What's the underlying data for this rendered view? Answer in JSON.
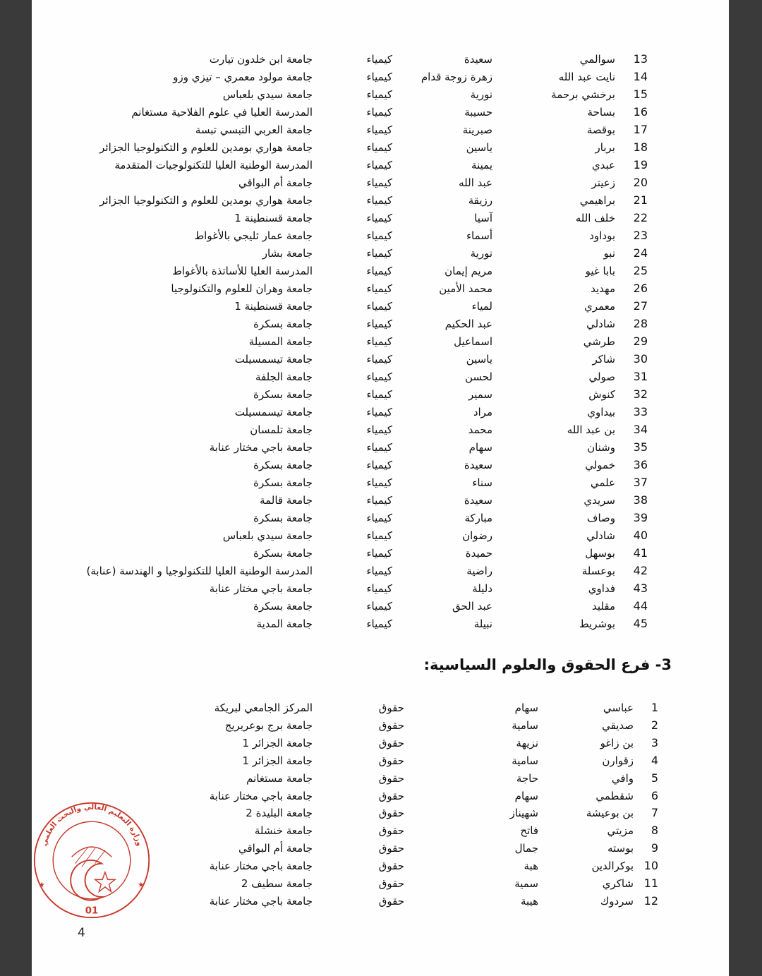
{
  "table1": {
    "rows": [
      {
        "n": "13",
        "surname": "سوالمي",
        "first": "سعيدة",
        "subject": "كيمياء",
        "university": "جامعة ابن خلدون تيارت"
      },
      {
        "n": "14",
        "surname": "نايت عبد الله",
        "first": "زهرة زوجة قدام",
        "subject": "كيمياء",
        "university": "جامعة مولود معمري – تيزي وزو"
      },
      {
        "n": "15",
        "surname": "برخشي برحمة",
        "first": "نورية",
        "subject": "كيمياء",
        "university": "جامعة سيدي بلعباس"
      },
      {
        "n": "16",
        "surname": "بساحة",
        "first": "حسيبة",
        "subject": "كيمياء",
        "university": "المدرسة العليا في علوم الفلاحية مستغانم"
      },
      {
        "n": "17",
        "surname": "بوقصة",
        "first": "صبرينة",
        "subject": "كيمياء",
        "university": "جامعة العربي التبسي  تبسة"
      },
      {
        "n": "18",
        "surname": "بربار",
        "first": "ياسين",
        "subject": "كيمياء",
        "university": "جامعة هواري بومدين للعلوم و التكنولوجيا الجزائر"
      },
      {
        "n": "19",
        "surname": "عبدي",
        "first": "يمينة",
        "subject": "كيمياء",
        "university": "المدرسة الوطنية العليا للتكنولوجيات المتقدمة"
      },
      {
        "n": "20",
        "surname": "زعيتر",
        "first": "عبد الله",
        "subject": "كيمياء",
        "university": "جامعة أم البواقي"
      },
      {
        "n": "21",
        "surname": "براهيمي",
        "first": "رزيقة",
        "subject": "كيمياء",
        "university": "جامعة هواري بومدين للعلوم و التكنولوجيا الجزائر"
      },
      {
        "n": "22",
        "surname": "خلف الله",
        "first": "آسيا",
        "subject": "كيمياء",
        "university": "جامعة قسنطينة 1"
      },
      {
        "n": "23",
        "surname": "بوداود",
        "first": "أسماء",
        "subject": "كيمياء",
        "university": "جامعة عمار ثليجي بالأغواط"
      },
      {
        "n": "24",
        "surname": "نبو",
        "first": "نورية",
        "subject": "كيمياء",
        "university": "جامعة بشار"
      },
      {
        "n": "25",
        "surname": "بابا غيو",
        "first": "مريم إيمان",
        "subject": "كيمياء",
        "university": "المدرسة العليا للأساتذة بالأغواط"
      },
      {
        "n": "26",
        "surname": "مهديد",
        "first": "محمد الأمين",
        "subject": "كيمياء",
        "university": "جامعة وهران  للعلوم والتكنولوجيا"
      },
      {
        "n": "27",
        "surname": "معمري",
        "first": "لمياء",
        "subject": "كيمياء",
        "university": "جامعة قسنطينة 1"
      },
      {
        "n": "28",
        "surname": "شادلي",
        "first": "عبد الحكيم",
        "subject": "كيمياء",
        "university": "جامعة بسكرة"
      },
      {
        "n": "29",
        "surname": "طرشي",
        "first": "اسماعيل",
        "subject": "كيمياء",
        "university": "جامعة المسيلة"
      },
      {
        "n": "30",
        "surname": "شاكر",
        "first": "ياسين",
        "subject": "كيمياء",
        "university": "جامعة تيسمسيلت"
      },
      {
        "n": "31",
        "surname": "صولي",
        "first": "لحسن",
        "subject": "كيمياء",
        "university": "جامعة الجلفة"
      },
      {
        "n": "32",
        "surname": "كنوش",
        "first": "سمير",
        "subject": "كيمياء",
        "university": "جامعة بسكرة"
      },
      {
        "n": "33",
        "surname": "بيداوي",
        "first": "مراد",
        "subject": "كيمياء",
        "university": "جامعة تيسمسيلت"
      },
      {
        "n": "34",
        "surname": "بن عبد الله",
        "first": "محمد",
        "subject": "كيمياء",
        "university": "جامعة  تلمسان"
      },
      {
        "n": "35",
        "surname": "وشنان",
        "first": "سهام",
        "subject": "كيمياء",
        "university": "جامعة باجي مختار  عنابة"
      },
      {
        "n": "36",
        "surname": "خمولي",
        "first": "سعيدة",
        "subject": "كيمياء",
        "university": "جامعة بسكرة"
      },
      {
        "n": "37",
        "surname": "علمي",
        "first": "سناء",
        "subject": "كيمياء",
        "university": "جامعة بسكرة"
      },
      {
        "n": "38",
        "surname": "سريدي",
        "first": "سعيدة",
        "subject": "كيمياء",
        "university": "جامعة قالمة"
      },
      {
        "n": "39",
        "surname": "وصاف",
        "first": "مباركة",
        "subject": "كيمياء",
        "university": "جامعة بسكرة"
      },
      {
        "n": "40",
        "surname": "شادلي",
        "first": "رضوان",
        "subject": "كيمياء",
        "university": "جامعة سيدي بلعباس"
      },
      {
        "n": "41",
        "surname": "بوسهل",
        "first": "حميدة",
        "subject": "كيمياء",
        "university": "جامعة بسكرة"
      },
      {
        "n": "42",
        "surname": "بوعسلة",
        "first": "راضية",
        "subject": "كيمياء",
        "university": "المدرسة الوطنية العليا للتكنولوجيا و الهندسة (عنابة)"
      },
      {
        "n": "43",
        "surname": "فداوي",
        "first": "دليلة",
        "subject": "كيمياء",
        "university": "جامعة باجي مختار  عنابة"
      },
      {
        "n": "44",
        "surname": "مقليد",
        "first": "عبد الحق",
        "subject": "كيمياء",
        "university": "جامعة بسكرة"
      },
      {
        "n": "45",
        "surname": "بوشريط",
        "first": "نبيلة",
        "subject": "كيمياء",
        "university": "جامعة المدية"
      }
    ]
  },
  "section3": {
    "heading": "3- فرع الحقوق والعلوم السياسية:"
  },
  "table2": {
    "rows": [
      {
        "n": "1",
        "surname": "عباسي",
        "first": "سهام",
        "subject": "حقوق",
        "university": "المركز الجامعي لبريكة"
      },
      {
        "n": "2",
        "surname": "صديقي",
        "first": "سامية",
        "subject": "حقوق",
        "university": "جامعة برج بوعريريج"
      },
      {
        "n": "3",
        "surname": "بن زاغو",
        "first": "نزيهة",
        "subject": "حقوق",
        "university": "جامعة الجزائر 1"
      },
      {
        "n": "4",
        "surname": "زقوارن",
        "first": "سامية",
        "subject": "حقوق",
        "university": "جامعة الجزائر 1"
      },
      {
        "n": "5",
        "surname": "وافي",
        "first": "حاجة",
        "subject": "حقوق",
        "university": "جامعة مستغانم"
      },
      {
        "n": "6",
        "surname": "شقطمي",
        "first": "سهام",
        "subject": "حقوق",
        "university": "جامعة باجي مختار  عنابة"
      },
      {
        "n": "7",
        "surname": "بن بوعيشة",
        "first": "شهيناز",
        "subject": "حقوق",
        "university": "جامعة البليدة 2"
      },
      {
        "n": "8",
        "surname": "مزيتي",
        "first": "فاتح",
        "subject": "حقوق",
        "university": "جامعة خنشلة"
      },
      {
        "n": "9",
        "surname": "بوسته",
        "first": "جمال",
        "subject": "حقوق",
        "university": "جامعة أم البواقي"
      },
      {
        "n": "10",
        "surname": "بوكرالدين",
        "first": "هبة",
        "subject": "حقوق",
        "university": "جامعة باجي مختار  عنابة"
      },
      {
        "n": "11",
        "surname": "شاكري",
        "first": "سمية",
        "subject": "حقوق",
        "university": "جامعة سطيف 2"
      },
      {
        "n": "12",
        "surname": "سردوك",
        "first": "هيبة",
        "subject": "حقوق",
        "university": "جامعة باجي مختار  عنابة"
      }
    ]
  },
  "stamp": {
    "text": "وزارة التعليم العالي والبحث العلمي",
    "number": "01",
    "color": "#c8382c"
  },
  "footer": {
    "page_number": "4"
  }
}
